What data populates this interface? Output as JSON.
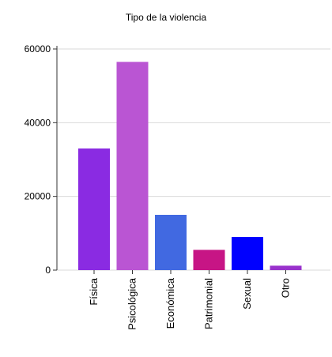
{
  "chart_data": {
    "type": "bar",
    "title": "Tipo de la violencia",
    "xlabel": "",
    "ylabel": "",
    "categories": [
      "Física",
      "Psicológica",
      "Económica",
      "Patrimonial",
      "Sexual",
      "Otro"
    ],
    "values": [
      33000,
      56500,
      15000,
      5500,
      9000,
      1200
    ],
    "colors": [
      "#8a2be2",
      "#ba55d3",
      "#4169e1",
      "#c71585",
      "#0000ff",
      "#9932cc"
    ],
    "ylim": [
      0,
      60000
    ],
    "yticks": [
      0,
      20000,
      40000,
      60000
    ],
    "grid": true,
    "legend": "none"
  }
}
